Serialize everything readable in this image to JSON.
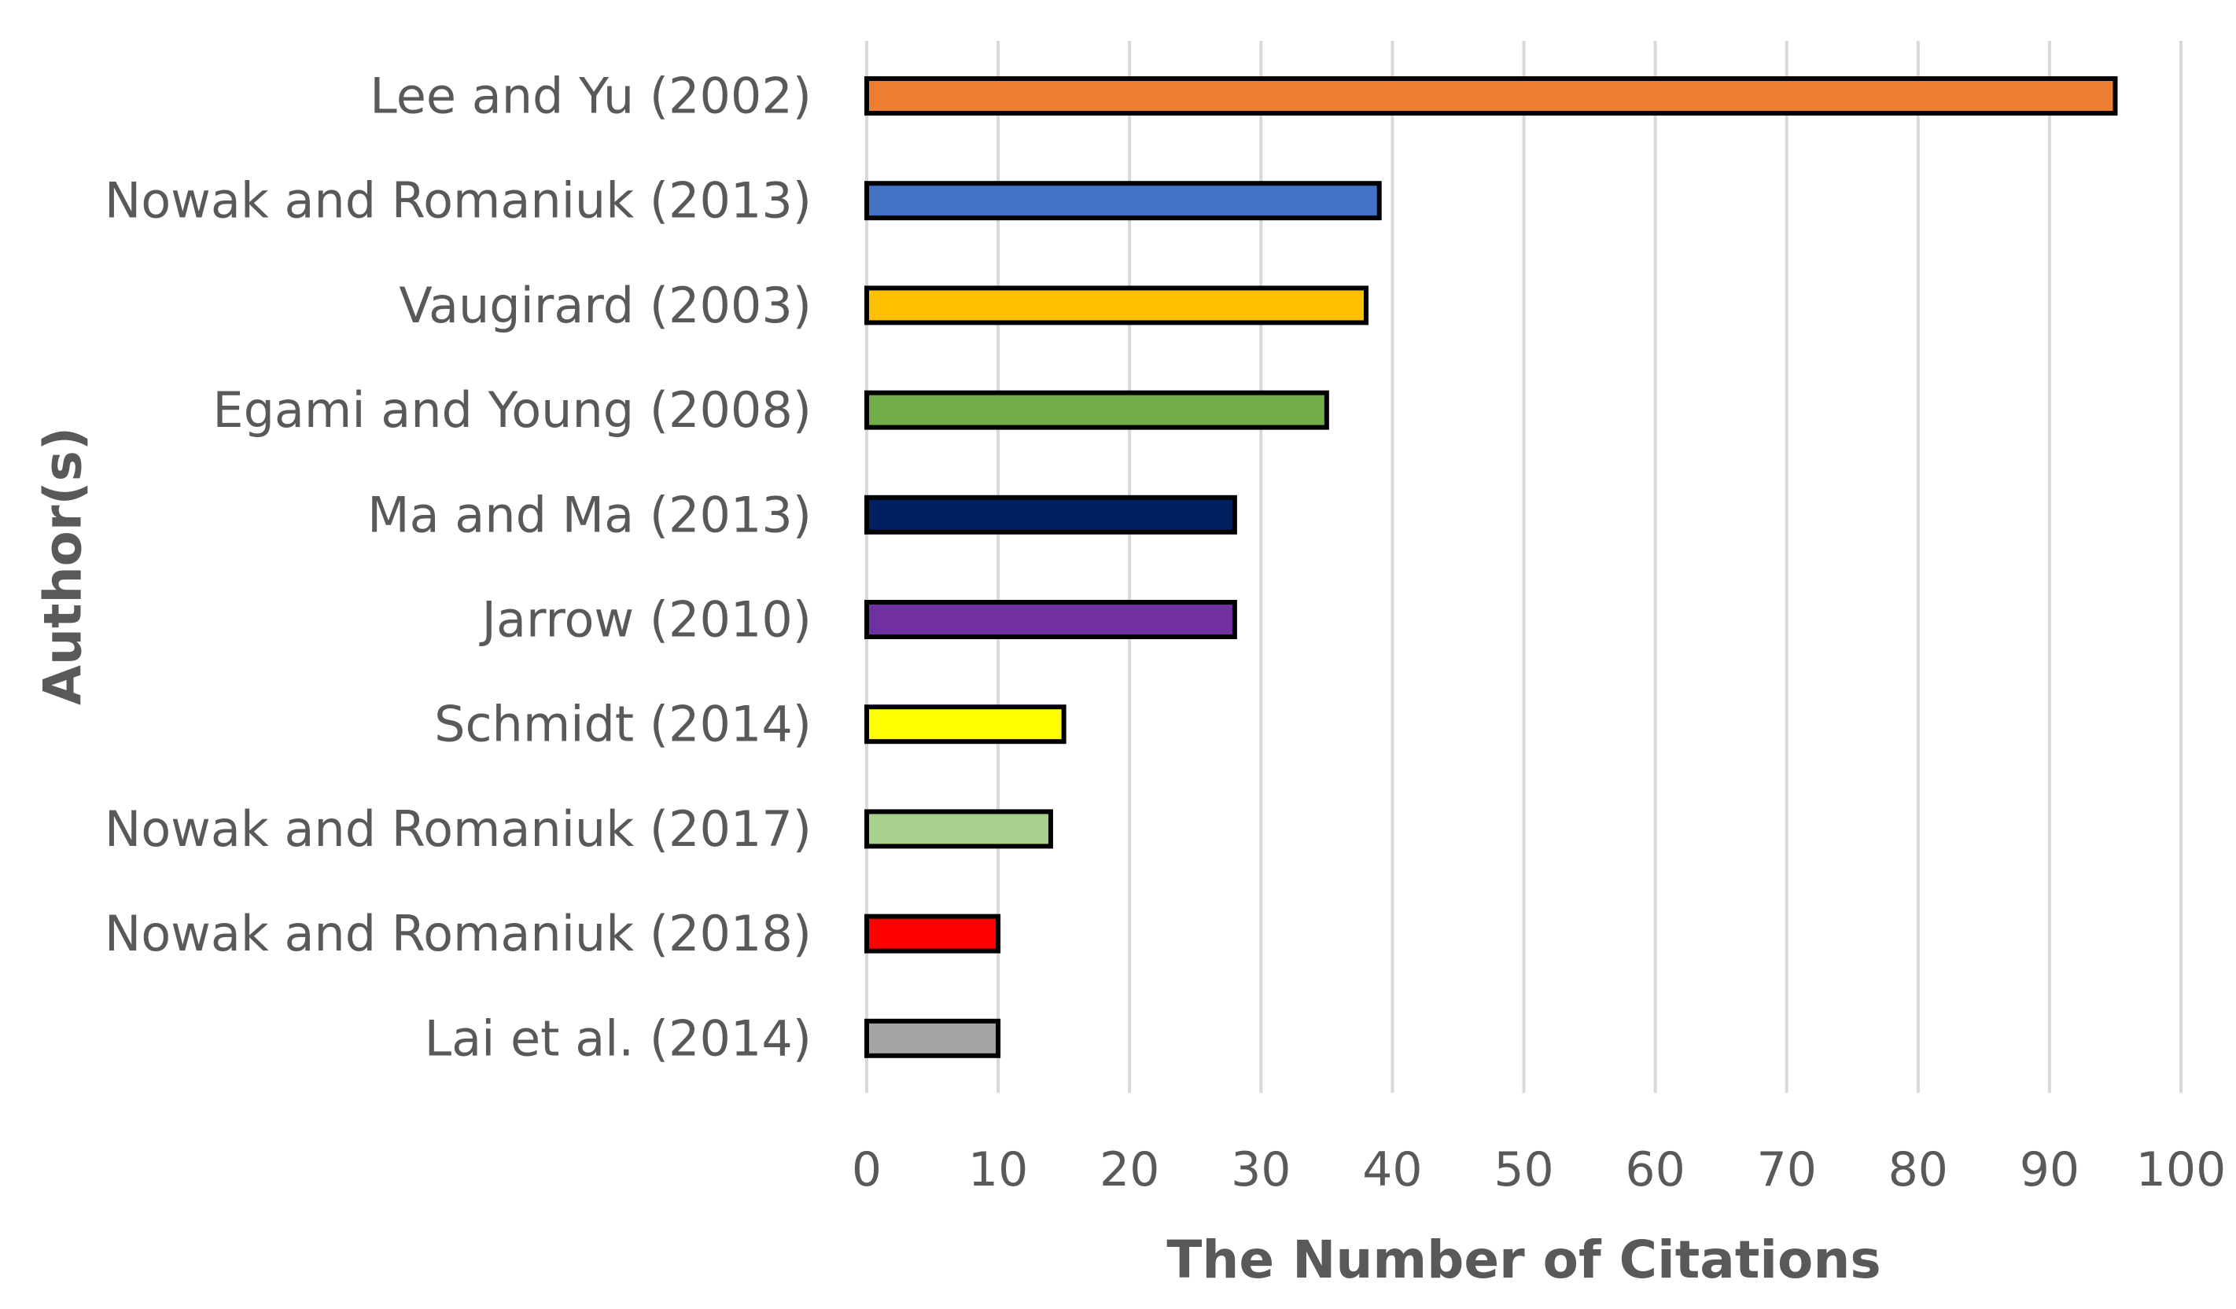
{
  "chart_data": {
    "type": "bar",
    "orientation": "horizontal",
    "categories": [
      "Lee and Yu (2002)",
      "Nowak and Romaniuk (2013)",
      "Vaugirard (2003)",
      "Egami and Young (2008)",
      "Ma and Ma (2013)",
      "Jarrow (2010)",
      "Schmidt (2014)",
      "Nowak and Romaniuk (2017)",
      "Nowak and Romaniuk (2018)",
      "Lai et al. (2014)"
    ],
    "values": [
      95,
      39,
      38,
      35,
      28,
      28,
      15,
      14,
      10,
      10
    ],
    "colors": [
      "#ed7d31",
      "#4472c4",
      "#ffc000",
      "#70ad47",
      "#002060",
      "#7030a0",
      "#ffff00",
      "#a9d18e",
      "#ff0000",
      "#a5a5a5"
    ],
    "xlabel": "The Number of Citations",
    "ylabel": "Author(s)",
    "xlim": [
      0,
      100
    ],
    "xticks": [
      "0",
      "10",
      "20",
      "30",
      "40",
      "50",
      "60",
      "70",
      "80",
      "90",
      "100"
    ],
    "grid": true,
    "gridline_color": "#d9d9d9",
    "bar_outline_color": "#000000",
    "text_color": "#595959"
  }
}
